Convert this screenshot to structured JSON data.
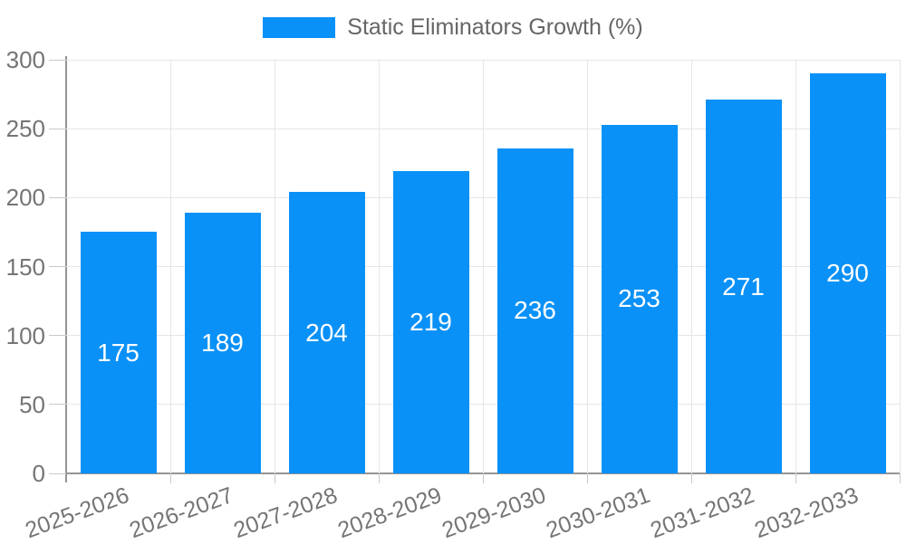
{
  "chart_data": {
    "type": "bar",
    "title": "Static Eliminators Growth (%)",
    "legend": {
      "label": "Static Eliminators Growth (%)",
      "position": "top-center"
    },
    "categories": [
      "2025-2026",
      "2026-2027",
      "2027-2028",
      "2028-2029",
      "2029-2030",
      "2030-2031",
      "2031-2032",
      "2032-2033"
    ],
    "values": [
      175,
      189,
      204,
      219,
      236,
      253,
      271,
      290
    ],
    "xlabel": "",
    "ylabel": "",
    "ylim": [
      0,
      300
    ],
    "yticks": [
      0,
      50,
      100,
      150,
      200,
      250,
      300
    ],
    "grid": "horizontal and vertical light gridlines",
    "x_label_rotation_deg": -20,
    "value_labels": "white, centered inside bars",
    "colors": {
      "bar": "#0a91f7",
      "value_label": "#ffffff",
      "axis_text": "#757575",
      "legend_text": "#666666",
      "grid": "#e6e6e6",
      "axis_line": "#949494",
      "tick": "#c9c9c9",
      "background": "#ffffff"
    }
  }
}
